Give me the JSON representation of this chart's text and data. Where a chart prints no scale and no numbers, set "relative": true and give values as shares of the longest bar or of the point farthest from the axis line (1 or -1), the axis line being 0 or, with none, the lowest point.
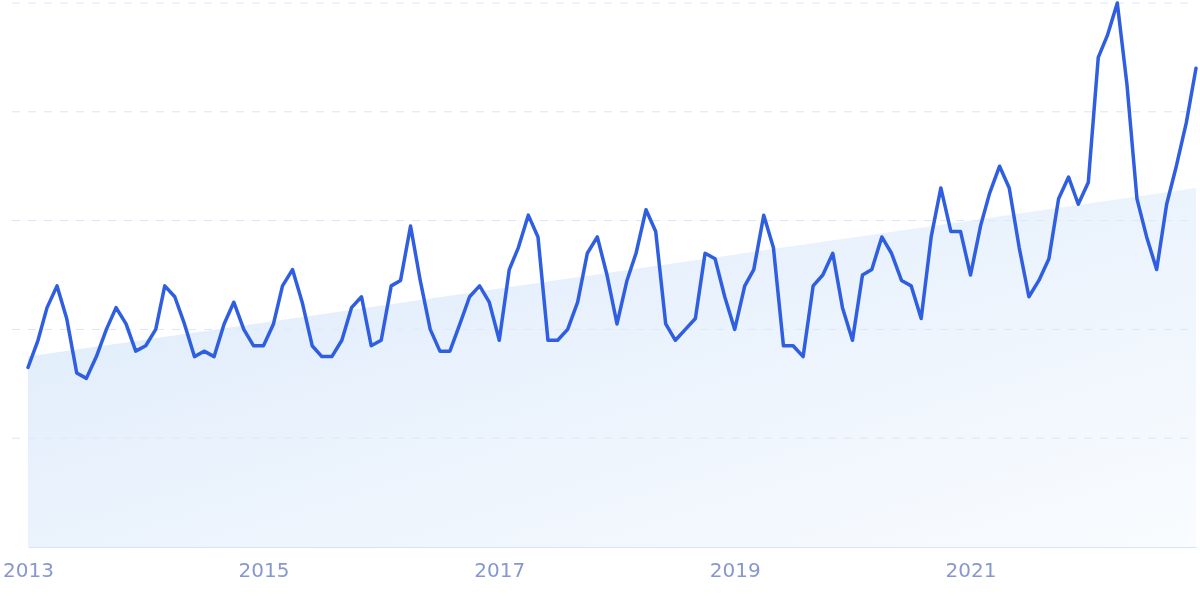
{
  "chart_data": {
    "type": "line",
    "relative": true,
    "grid": "y",
    "xlim": [
      "2013-01",
      "2022-12"
    ],
    "xticks": [
      "2013",
      "2015",
      "2017",
      "2019",
      "2021"
    ],
    "series": [
      {
        "type": "area",
        "color": "#dceafb",
        "x": [
          "2013-01",
          "2022-12"
        ],
        "values": [
          0.35,
          0.66
        ]
      },
      {
        "color": "#2f5fe0",
        "x": [
          "2013-01",
          "2013-02",
          "2013-03",
          "2013-04",
          "2013-05",
          "2013-06",
          "2013-07",
          "2013-08",
          "2013-09",
          "2013-10",
          "2013-11",
          "2013-12",
          "2014-01",
          "2014-02",
          "2014-03",
          "2014-04",
          "2014-05",
          "2014-06",
          "2014-07",
          "2014-08",
          "2014-09",
          "2014-10",
          "2014-11",
          "2014-12",
          "2015-01",
          "2015-02",
          "2015-03",
          "2015-04",
          "2015-05",
          "2015-06",
          "2015-07",
          "2015-08",
          "2015-09",
          "2015-10",
          "2015-11",
          "2015-12",
          "2016-01",
          "2016-02",
          "2016-03",
          "2016-04",
          "2016-05",
          "2016-06",
          "2016-07",
          "2016-08",
          "2016-09",
          "2016-10",
          "2016-11",
          "2016-12",
          "2017-01",
          "2017-02",
          "2017-03",
          "2017-04",
          "2017-05",
          "2017-06",
          "2017-07",
          "2017-08",
          "2017-09",
          "2017-10",
          "2017-11",
          "2017-12",
          "2018-01",
          "2018-02",
          "2018-03",
          "2018-04",
          "2018-05",
          "2018-06",
          "2018-07",
          "2018-08",
          "2018-09",
          "2018-10",
          "2018-11",
          "2018-12",
          "2019-01",
          "2019-02",
          "2019-03",
          "2019-04",
          "2019-05",
          "2019-06",
          "2019-07",
          "2019-08",
          "2019-09",
          "2019-10",
          "2019-11",
          "2019-12",
          "2020-01",
          "2020-02",
          "2020-03",
          "2020-04",
          "2020-05",
          "2020-06",
          "2020-07",
          "2020-08",
          "2020-09",
          "2020-10",
          "2020-11",
          "2020-12",
          "2021-01",
          "2021-02",
          "2021-03",
          "2021-04",
          "2021-05",
          "2021-06",
          "2021-07",
          "2021-08",
          "2021-09",
          "2021-10",
          "2021-11",
          "2021-12",
          "2022-01",
          "2022-02",
          "2022-03",
          "2022-04",
          "2022-05",
          "2022-06",
          "2022-07",
          "2022-08",
          "2022-09",
          "2022-10",
          "2022-11",
          "2022-12"
        ],
        "values": [
          0.33,
          0.38,
          0.44,
          0.48,
          0.42,
          0.32,
          0.31,
          0.35,
          0.4,
          0.44,
          0.41,
          0.36,
          0.37,
          0.4,
          0.48,
          0.46,
          0.41,
          0.35,
          0.36,
          0.35,
          0.41,
          0.45,
          0.4,
          0.37,
          0.37,
          0.41,
          0.48,
          0.51,
          0.45,
          0.37,
          0.35,
          0.35,
          0.38,
          0.44,
          0.46,
          0.37,
          0.38,
          0.48,
          0.49,
          0.59,
          0.49,
          0.4,
          0.36,
          0.36,
          0.41,
          0.46,
          0.48,
          0.45,
          0.38,
          0.51,
          0.55,
          0.61,
          0.57,
          0.38,
          0.38,
          0.4,
          0.45,
          0.54,
          0.57,
          0.5,
          0.41,
          0.49,
          0.54,
          0.62,
          0.58,
          0.41,
          0.38,
          0.4,
          0.42,
          0.54,
          0.53,
          0.46,
          0.4,
          0.48,
          0.51,
          0.61,
          0.55,
          0.37,
          0.37,
          0.35,
          0.48,
          0.5,
          0.54,
          0.44,
          0.38,
          0.5,
          0.51,
          0.57,
          0.54,
          0.49,
          0.48,
          0.42,
          0.57,
          0.66,
          0.58,
          0.58,
          0.5,
          0.59,
          0.65,
          0.7,
          0.66,
          0.55,
          0.46,
          0.49,
          0.53,
          0.64,
          0.68,
          0.63,
          0.67,
          0.9,
          0.94,
          1,
          0.85,
          0.64,
          0.57,
          0.51,
          0.63,
          0.7,
          0.78,
          0.88
        ]
      }
    ]
  }
}
